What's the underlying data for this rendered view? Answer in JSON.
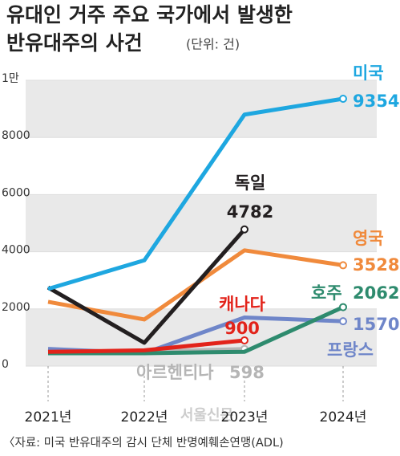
{
  "chart_data": {
    "type": "line",
    "title": [
      "유대인 거주 주요 국가에서 발생한",
      "반유대주의 사건"
    ],
    "subtitle": "(단위: 건)",
    "source": "〈자료: 미국 반유대주의 감시 단체 반명예훼손연맹(ADL)",
    "watermark": "서울신문",
    "categories": [
      "2021년",
      "2022년",
      "2023년",
      "2024년"
    ],
    "ylim": [
      0,
      10000
    ],
    "yticks": [
      0,
      2000,
      4000,
      6000,
      8000,
      {
        "value": 10000,
        "label": "1만"
      }
    ],
    "series": [
      {
        "name": "미국",
        "color": "#1ea7e0",
        "values": [
          2700,
          3700,
          8800,
          9354
        ]
      },
      {
        "name": "독일",
        "color": "#231f20",
        "values": [
          2750,
          815,
          4782,
          null
        ]
      },
      {
        "name": "영국",
        "color": "#f08a3c",
        "values": [
          2250,
          1630,
          4050,
          3528
        ]
      },
      {
        "name": "캐나다",
        "color": "#e2231a",
        "values": [
          500,
          550,
          900,
          null
        ]
      },
      {
        "name": "호주",
        "color": "#2e8b6e",
        "values": [
          450,
          450,
          500,
          2062
        ]
      },
      {
        "name": "프랑스",
        "color": "#6f86c9",
        "values": [
          600,
          450,
          1700,
          1570
        ]
      },
      {
        "name": "아르헨티나",
        "color": "#b5b5b5",
        "values": [
          500,
          500,
          598,
          null
        ]
      }
    ]
  }
}
